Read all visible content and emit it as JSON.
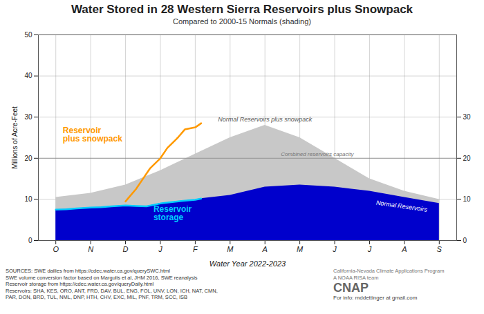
{
  "chart_data": {
    "type": "area",
    "title": "Water Stored in 28 Western Sierra Reservoirs plus Snowpack",
    "subtitle": "Compared to 2000-15 Normals (shading)",
    "xlabel": "Water Year 2022-2023",
    "ylabel": "Millions of Acre-Feet",
    "xlim": [
      -0.5,
      11.5
    ],
    "xticks": [
      {
        "value": 0,
        "label": "O"
      },
      {
        "value": 1,
        "label": "N"
      },
      {
        "value": 2,
        "label": "D"
      },
      {
        "value": 3,
        "label": "J"
      },
      {
        "value": 4,
        "label": "F"
      },
      {
        "value": 5,
        "label": "M"
      },
      {
        "value": 6,
        "label": "A"
      },
      {
        "value": 7,
        "label": "M"
      },
      {
        "value": 8,
        "label": "J"
      },
      {
        "value": 9,
        "label": "J"
      },
      {
        "value": 10,
        "label": "A"
      },
      {
        "value": 11,
        "label": "S"
      }
    ],
    "ylim": [
      0,
      50
    ],
    "yticks": [
      0,
      10,
      20,
      30,
      40,
      50
    ],
    "y2lim": [
      0,
      50
    ],
    "y2ticks": [
      0,
      10,
      20,
      30
    ],
    "grid": true,
    "series": [
      {
        "name": "Normal Reservoirs plus snowpack",
        "type": "area",
        "color": "#c8c8c8",
        "x": [
          0,
          1,
          2,
          3,
          4,
          5,
          6,
          7,
          8,
          9,
          10,
          11
        ],
        "values": [
          10.5,
          11.5,
          13.5,
          17,
          21,
          25,
          28,
          25,
          20,
          15,
          12,
          10
        ]
      },
      {
        "name": "Normal Reservoirs",
        "type": "area",
        "color": "#0000cc",
        "x": [
          0,
          0.3,
          0.6,
          1.0,
          1.3,
          1.6,
          2.0,
          2.3,
          2.6,
          3.0,
          3.3,
          3.6,
          4.0,
          4.17,
          5,
          6,
          7,
          8,
          9,
          10,
          11
        ],
        "values": [
          7.5,
          7.6,
          7.8,
          8.0,
          8.1,
          8.3,
          8.5,
          8.4,
          8.3,
          9.0,
          9.3,
          9.6,
          9.9,
          10.2,
          11.0,
          13.0,
          13.5,
          13.0,
          12.0,
          10.5,
          9.0
        ]
      },
      {
        "name": "Reservoir\nstorage",
        "type": "line",
        "color": "#00ccff",
        "x": [
          0,
          0.3,
          0.6,
          1.0,
          1.3,
          1.6,
          2.0,
          2.3,
          2.6,
          3.0,
          3.3,
          3.6,
          4.0,
          4.17
        ],
        "values": [
          7.5,
          7.6,
          7.8,
          8.0,
          8.1,
          8.3,
          8.5,
          8.4,
          8.3,
          9.0,
          9.3,
          9.6,
          9.9,
          10.2
        ]
      },
      {
        "name": "Reservoir\nplus snowpack",
        "type": "line",
        "color": "#ff9900",
        "x": [
          2.0,
          2.1,
          2.3,
          2.5,
          2.7,
          3.0,
          3.2,
          3.5,
          3.7,
          4.0,
          4.17
        ],
        "values": [
          9.5,
          10.5,
          12.5,
          15.0,
          17.5,
          20.0,
          22.5,
          25.0,
          27.0,
          27.5,
          28.5
        ]
      }
    ],
    "annotations": [
      {
        "text": "Combined reservoirs capacity",
        "y": 20.0
      },
      {
        "text": "SOURCES: SWE dailies from https://cdec.water.ca.gov/querySWC.html\nSWE volume conversion factor based on Margulis et al, JHM 2016, SWE reanalysis\nReservoir storage from https://cdec.water.ca.gov/queryDaily.html\nReservoirs: SHA, KES, ORO, ANT, FRD, DAV, BUL, ENG, FOL, UNV, LON, ICH, NAT, CMN,\nPAR, DON, BRD, TUL, NML, DNP, HTH, CHV, EXC, MIL, PNF, TRM, SCC, ISB"
      },
      {
        "text": "California-Nevada Climate Applications Program"
      },
      {
        "text": "A NOAA RISA team"
      },
      {
        "text": "CNAP"
      },
      {
        "text": "For info: mddettinger at gmail.com"
      }
    ]
  }
}
